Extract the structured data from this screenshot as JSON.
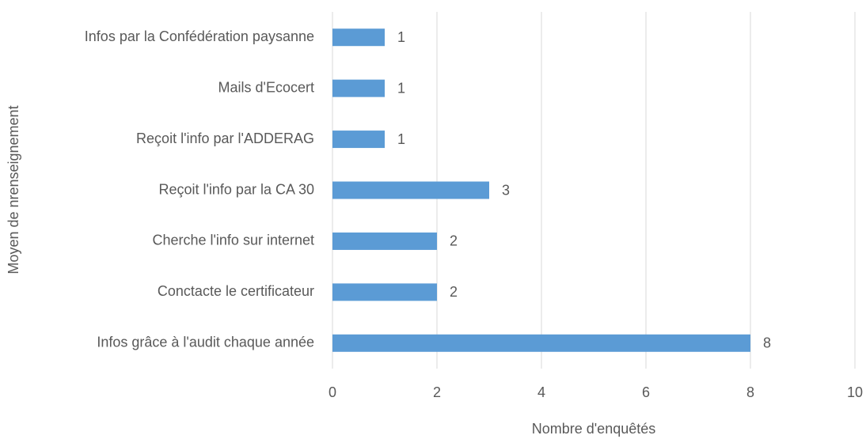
{
  "chart_data": {
    "type": "bar",
    "orientation": "horizontal",
    "categories": [
      "Infos par la Confédération paysanne",
      "Mails d'Ecocert",
      "Reçoit l'info par l'ADDERAG",
      "Reçoit l'info par la CA 30",
      "Cherche l'info sur internet",
      "Conctacte le certificateur",
      "Infos grâce à l'audit chaque année"
    ],
    "values": [
      1,
      1,
      1,
      3,
      2,
      2,
      8
    ],
    "color": "#5b9bd5",
    "xlim": [
      0,
      10
    ],
    "xticks": [
      0,
      2,
      4,
      6,
      8,
      10
    ],
    "grid": true,
    "xlabel": "Nombre d'enquêtés",
    "ylabel": "Moyen de nrenseignement"
  }
}
